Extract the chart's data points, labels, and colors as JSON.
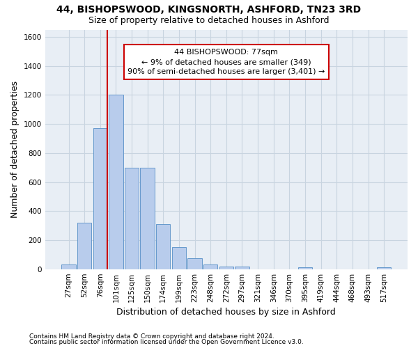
{
  "title": "44, BISHOPSWOOD, KINGSNORTH, ASHFORD, TN23 3RD",
  "subtitle": "Size of property relative to detached houses in Ashford",
  "xlabel": "Distribution of detached houses by size in Ashford",
  "ylabel": "Number of detached properties",
  "footnote1": "Contains HM Land Registry data © Crown copyright and database right 2024.",
  "footnote2": "Contains public sector information licensed under the Open Government Licence v3.0.",
  "bar_labels": [
    "27sqm",
    "52sqm",
    "76sqm",
    "101sqm",
    "125sqm",
    "150sqm",
    "174sqm",
    "199sqm",
    "223sqm",
    "248sqm",
    "272sqm",
    "297sqm",
    "321sqm",
    "346sqm",
    "370sqm",
    "395sqm",
    "419sqm",
    "444sqm",
    "468sqm",
    "493sqm",
    "517sqm"
  ],
  "bar_values": [
    30,
    320,
    970,
    1200,
    700,
    700,
    310,
    150,
    75,
    30,
    18,
    18,
    0,
    0,
    0,
    15,
    0,
    0,
    0,
    0,
    15
  ],
  "bar_color": "#b8ccec",
  "bar_edgecolor": "#6699cc",
  "annotation_line1": "44 BISHOPSWOOD: 77sqm",
  "annotation_line2": "← 9% of detached houses are smaller (349)",
  "annotation_line3": "90% of semi-detached houses are larger (3,401) →",
  "vline_bar_index": 2,
  "vline_color": "#cc0000",
  "annotation_box_edgecolor": "#cc0000",
  "annotation_box_facecolor": "#ffffff",
  "ylim": [
    0,
    1650
  ],
  "yticks": [
    0,
    200,
    400,
    600,
    800,
    1000,
    1200,
    1400,
    1600
  ],
  "grid_color": "#c8d4e0",
  "bg_color": "#e8eef5",
  "title_fontsize": 10,
  "subtitle_fontsize": 9,
  "xlabel_fontsize": 9,
  "ylabel_fontsize": 9,
  "tick_fontsize": 7.5,
  "annotation_fontsize": 8,
  "footnote_fontsize": 6.5
}
